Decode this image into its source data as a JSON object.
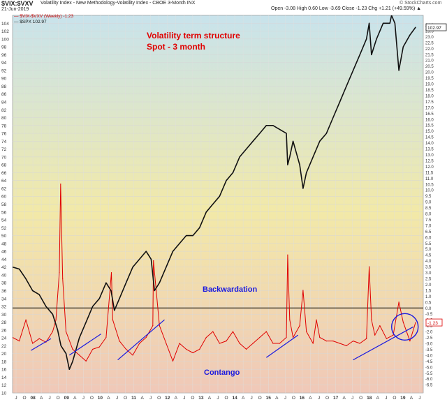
{
  "header": {
    "symbol": "$VIX:$VXV",
    "description": "Volatility Index - New Methodology-Volatility Index - CBOE 3-Month INX",
    "date": "21-Jun-2019",
    "ohlc": "Open -3.08  High 0.60  Low -3.69  Close -1.23  Chg +1.21 (+49.59%) ▲",
    "legend_line1": "— $VIX-$VXV (Weekly) -1.23",
    "legend_line2": "— $SPX 102.97",
    "watermark": "© StockCharts.com"
  },
  "annotations": {
    "title_line1": "Volatility term structure",
    "title_line2": "Spot - 3 month",
    "backwardation": "Backwardation",
    "contango": "Contango"
  },
  "colors": {
    "spread_line": "#e00000",
    "spx_line": "#111111",
    "annotation_red": "#e00000",
    "annotation_blue": "#1a1adf",
    "trendline_blue": "#1a1adf",
    "zero_line": "#000000",
    "bg_top": "#c8e3ec",
    "bg_mid": "#f2e9a8",
    "bg_bottom": "#f0c8b8"
  },
  "icons": {
    "up_triangle": "up-triangle-icon"
  },
  "chart_data": {
    "type": "line",
    "grid": true,
    "x_tick_labels": [
      "J",
      "O",
      "08",
      "A",
      "J",
      "O",
      "09",
      "A",
      "J",
      "O",
      "10",
      "A",
      "J",
      "O",
      "11",
      "A",
      "J",
      "O",
      "12",
      "A",
      "J",
      "O",
      "13",
      "A",
      "J",
      "O",
      "14",
      "A",
      "J",
      "O",
      "15",
      "A",
      "J",
      "O",
      "16",
      "A",
      "J",
      "O",
      "17",
      "A",
      "J",
      "O",
      "18",
      "A",
      "J",
      "O",
      "19",
      "A",
      "J"
    ],
    "left_axis": {
      "ylim": [
        10,
        106
      ],
      "ticks": [
        10,
        12,
        14,
        16,
        18,
        20,
        22,
        24,
        26,
        28,
        30,
        32,
        34,
        36,
        38,
        40,
        42,
        44,
        46,
        48,
        50,
        52,
        54,
        56,
        58,
        60,
        62,
        64,
        66,
        68,
        70,
        72,
        74,
        76,
        78,
        80,
        82,
        84,
        86,
        88,
        90,
        92,
        94,
        96,
        98,
        100,
        102,
        104
      ]
    },
    "right_axis": {
      "ylim": [
        -7.2,
        24.8
      ],
      "ticks": [
        "24.0",
        "23.5",
        "23.0",
        "22.5",
        "22.0",
        "21.5",
        "21.0",
        "20.5",
        "20.0",
        "19.5",
        "19.0",
        "18.5",
        "18.0",
        "17.5",
        "17.0",
        "16.5",
        "16.0",
        "15.5",
        "15.0",
        "14.5",
        "14.0",
        "13.5",
        "13.0",
        "12.5",
        "12.0",
        "11.5",
        "11.0",
        "10.5",
        "10.0",
        "9.5",
        "9.0",
        "8.5",
        "8.0",
        "7.5",
        "7.0",
        "6.5",
        "6.0",
        "5.5",
        "5.0",
        "4.5",
        "4.0",
        "3.5",
        "3.0",
        "2.5",
        "2.0",
        "1.5",
        "1.0",
        "0.5",
        "0.0",
        "-0.5",
        "-1.0",
        "-1.5",
        "-2.0",
        "-2.5",
        "-3.0",
        "-3.5",
        "-4.0",
        "-4.5",
        "-5.0",
        "-5.5",
        "-6.0",
        "-6.5"
      ],
      "badges": [
        "102.97",
        "-1.23"
      ]
    },
    "reference_line": {
      "axis": "right",
      "value": 0.0
    },
    "series": [
      {
        "name": "$VIX-$VXV (Weekly)",
        "axis": "right",
        "x": [
          2007.4,
          2007.6,
          2007.8,
          2008.0,
          2008.2,
          2008.4,
          2008.6,
          2008.7,
          2008.8,
          2008.84,
          2008.9,
          2009.0,
          2009.2,
          2009.4,
          2009.6,
          2009.8,
          2010.0,
          2010.2,
          2010.36,
          2010.4,
          2010.6,
          2010.8,
          2011.0,
          2011.2,
          2011.4,
          2011.6,
          2011.62,
          2011.7,
          2011.8,
          2012.0,
          2012.2,
          2012.4,
          2012.6,
          2012.8,
          2013.0,
          2013.2,
          2013.4,
          2013.6,
          2013.8,
          2014.0,
          2014.2,
          2014.4,
          2014.6,
          2014.8,
          2015.0,
          2015.2,
          2015.4,
          2015.6,
          2015.64,
          2015.7,
          2015.8,
          2016.0,
          2016.1,
          2016.2,
          2016.4,
          2016.5,
          2016.6,
          2016.8,
          2017.0,
          2017.2,
          2017.4,
          2017.6,
          2017.8,
          2018.0,
          2018.08,
          2018.15,
          2018.25,
          2018.4,
          2018.6,
          2018.8,
          2018.97,
          2019.1,
          2019.3,
          2019.47
        ],
        "y": [
          -2.5,
          -2.8,
          -1.0,
          -3.0,
          -2.6,
          -2.9,
          -2.0,
          -1.0,
          3.0,
          10.5,
          2.5,
          -2.0,
          -3.5,
          -4.0,
          -4.5,
          -3.5,
          -3.3,
          -2.5,
          3.0,
          -1.0,
          -2.8,
          -3.5,
          -4.0,
          -3.0,
          -2.5,
          -1.5,
          4.0,
          1.5,
          -1.5,
          -3.0,
          -4.5,
          -3.0,
          -3.5,
          -3.8,
          -3.5,
          -2.5,
          -2.0,
          -3.0,
          -2.8,
          -2.0,
          -3.0,
          -3.5,
          -3.0,
          -2.5,
          -2.0,
          -3.0,
          -3.0,
          -2.5,
          4.5,
          -1.0,
          -2.5,
          -1.5,
          1.5,
          -2.0,
          -3.0,
          -1.0,
          -2.5,
          -2.8,
          -2.8,
          -3.0,
          -3.2,
          -2.8,
          -3.0,
          -2.6,
          3.5,
          -1.0,
          -2.3,
          -1.5,
          -2.6,
          -2.3,
          0.5,
          -1.2,
          -2.8,
          -1.23
        ]
      },
      {
        "name": "$SPX",
        "axis": "left",
        "x": [
          2007.4,
          2007.6,
          2007.8,
          2008.0,
          2008.2,
          2008.4,
          2008.6,
          2008.75,
          2008.85,
          2009.0,
          2009.1,
          2009.2,
          2009.4,
          2009.6,
          2009.8,
          2010.0,
          2010.2,
          2010.35,
          2010.45,
          2010.6,
          2010.8,
          2011.0,
          2011.2,
          2011.4,
          2011.55,
          2011.65,
          2011.8,
          2012.0,
          2012.2,
          2012.4,
          2012.6,
          2012.8,
          2013.0,
          2013.2,
          2013.4,
          2013.6,
          2013.8,
          2014.0,
          2014.2,
          2014.4,
          2014.6,
          2014.8,
          2015.0,
          2015.2,
          2015.4,
          2015.6,
          2015.64,
          2015.7,
          2015.8,
          2016.0,
          2016.1,
          2016.2,
          2016.4,
          2016.6,
          2016.8,
          2017.0,
          2017.2,
          2017.4,
          2017.6,
          2017.8,
          2018.0,
          2018.08,
          2018.15,
          2018.3,
          2018.5,
          2018.7,
          2018.75,
          2018.85,
          2018.97,
          2019.1,
          2019.3,
          2019.47
        ],
        "y": [
          42,
          41.5,
          39,
          36,
          35,
          32,
          30,
          26,
          22,
          20,
          16,
          18,
          24,
          28,
          32,
          34,
          38,
          36,
          31,
          34,
          38,
          42,
          44,
          46,
          44,
          36,
          38,
          42,
          46,
          48,
          50,
          50,
          52,
          56,
          58,
          60,
          64,
          66,
          70,
          72,
          74,
          76,
          78,
          78,
          77,
          76,
          68,
          70,
          74,
          68,
          62,
          66,
          70,
          74,
          76,
          80,
          84,
          88,
          92,
          96,
          100,
          104,
          96,
          100,
          104,
          104,
          106,
          104,
          92,
          98,
          101,
          102.97
        ]
      }
    ],
    "trendlines": [
      {
        "axis": "right",
        "from": [
          2007.95,
          -3.6
        ],
        "to": [
          2008.55,
          -2.6
        ]
      },
      {
        "axis": "right",
        "from": [
          2009.1,
          -4.0
        ],
        "to": [
          2010.05,
          -2.2
        ]
      },
      {
        "axis": "right",
        "from": [
          2010.55,
          -4.4
        ],
        "to": [
          2011.95,
          -1.0
        ]
      },
      {
        "axis": "right",
        "from": [
          2015.0,
          -4.2
        ],
        "to": [
          2015.95,
          -2.3
        ]
      },
      {
        "axis": "right",
        "from": [
          2017.6,
          -4.4
        ],
        "to": [
          2019.4,
          -1.6
        ]
      }
    ],
    "highlight_circle": {
      "axis": "right",
      "center": [
        2019.15,
        -1.6
      ]
    }
  }
}
